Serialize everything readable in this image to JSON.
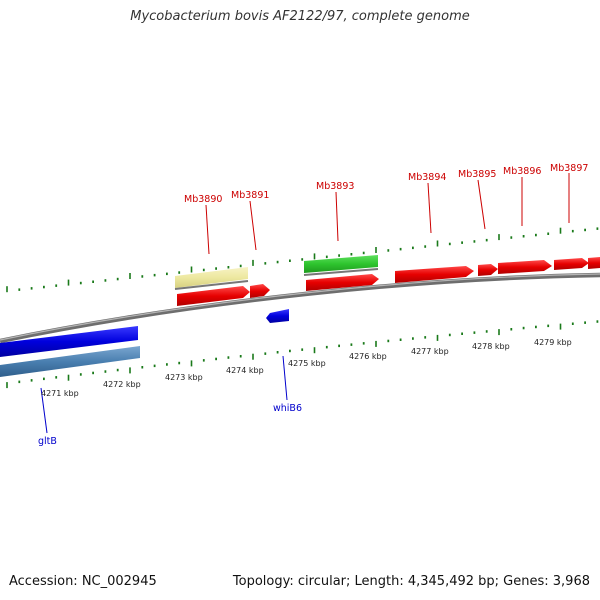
{
  "header": {
    "title": "Mycobacterium bovis AF2122/97, complete genome"
  },
  "footer": {
    "accession": "Accession: NC_002945",
    "summary": "Topology: circular; Length: 4,345,492 bp; Genes: 3,968"
  },
  "colors": {
    "forward_cds": "#e60000",
    "reverse_cds": "#0000dd",
    "trna": "#ede8a0",
    "rrna": "#2ec42e",
    "reverse_misc": "#4a7fb0",
    "backbone": "#8a8a8a",
    "tick": "#1a7a1a",
    "forward_label": "#cc0000",
    "reverse_label": "#0000cc"
  },
  "scale_labels": [
    "4271 kbp",
    "4272 kbp",
    "4273 kbp",
    "4274 kbp",
    "4275 kbp",
    "4276 kbp",
    "4277 kbp",
    "4278 kbp",
    "4279 kbp"
  ],
  "forward_gene_labels": [
    "Mb3890",
    "Mb3891",
    "Mb3893",
    "Mb3894",
    "Mb3895",
    "Mb3896",
    "Mb3897"
  ],
  "reverse_gene_labels": [
    "gltB",
    "whiB6"
  ]
}
